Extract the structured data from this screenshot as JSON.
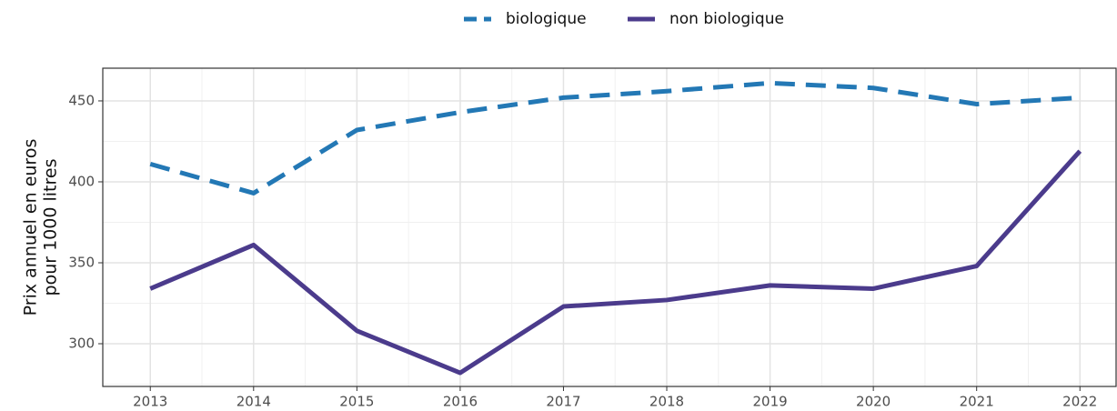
{
  "chart_data": {
    "type": "line",
    "y_label": [
      "Prix annuel en euros",
      "pour 1000 litres"
    ],
    "x": [
      2013,
      2014,
      2015,
      2016,
      2017,
      2018,
      2019,
      2020,
      2021,
      2022
    ],
    "series": [
      {
        "name": "biologique",
        "color": "#2378b5",
        "dashed": true,
        "values": [
          411,
          393,
          432,
          443,
          452,
          456,
          461,
          458,
          448,
          452
        ]
      },
      {
        "name": "non biologique",
        "color": "#4b3b8c",
        "dashed": false,
        "values": [
          334,
          361,
          308,
          282,
          323,
          327,
          336,
          334,
          348,
          419
        ]
      }
    ],
    "xlim": [
      2012.54,
      2022.35
    ],
    "xticks": [
      2013,
      2014,
      2015,
      2016,
      2017,
      2018,
      2019,
      2020,
      2021,
      2022
    ],
    "ylim": [
      273.6,
      470.2
    ],
    "yticks": [
      300,
      350,
      400,
      450
    ],
    "grid": true,
    "legend": "top"
  }
}
